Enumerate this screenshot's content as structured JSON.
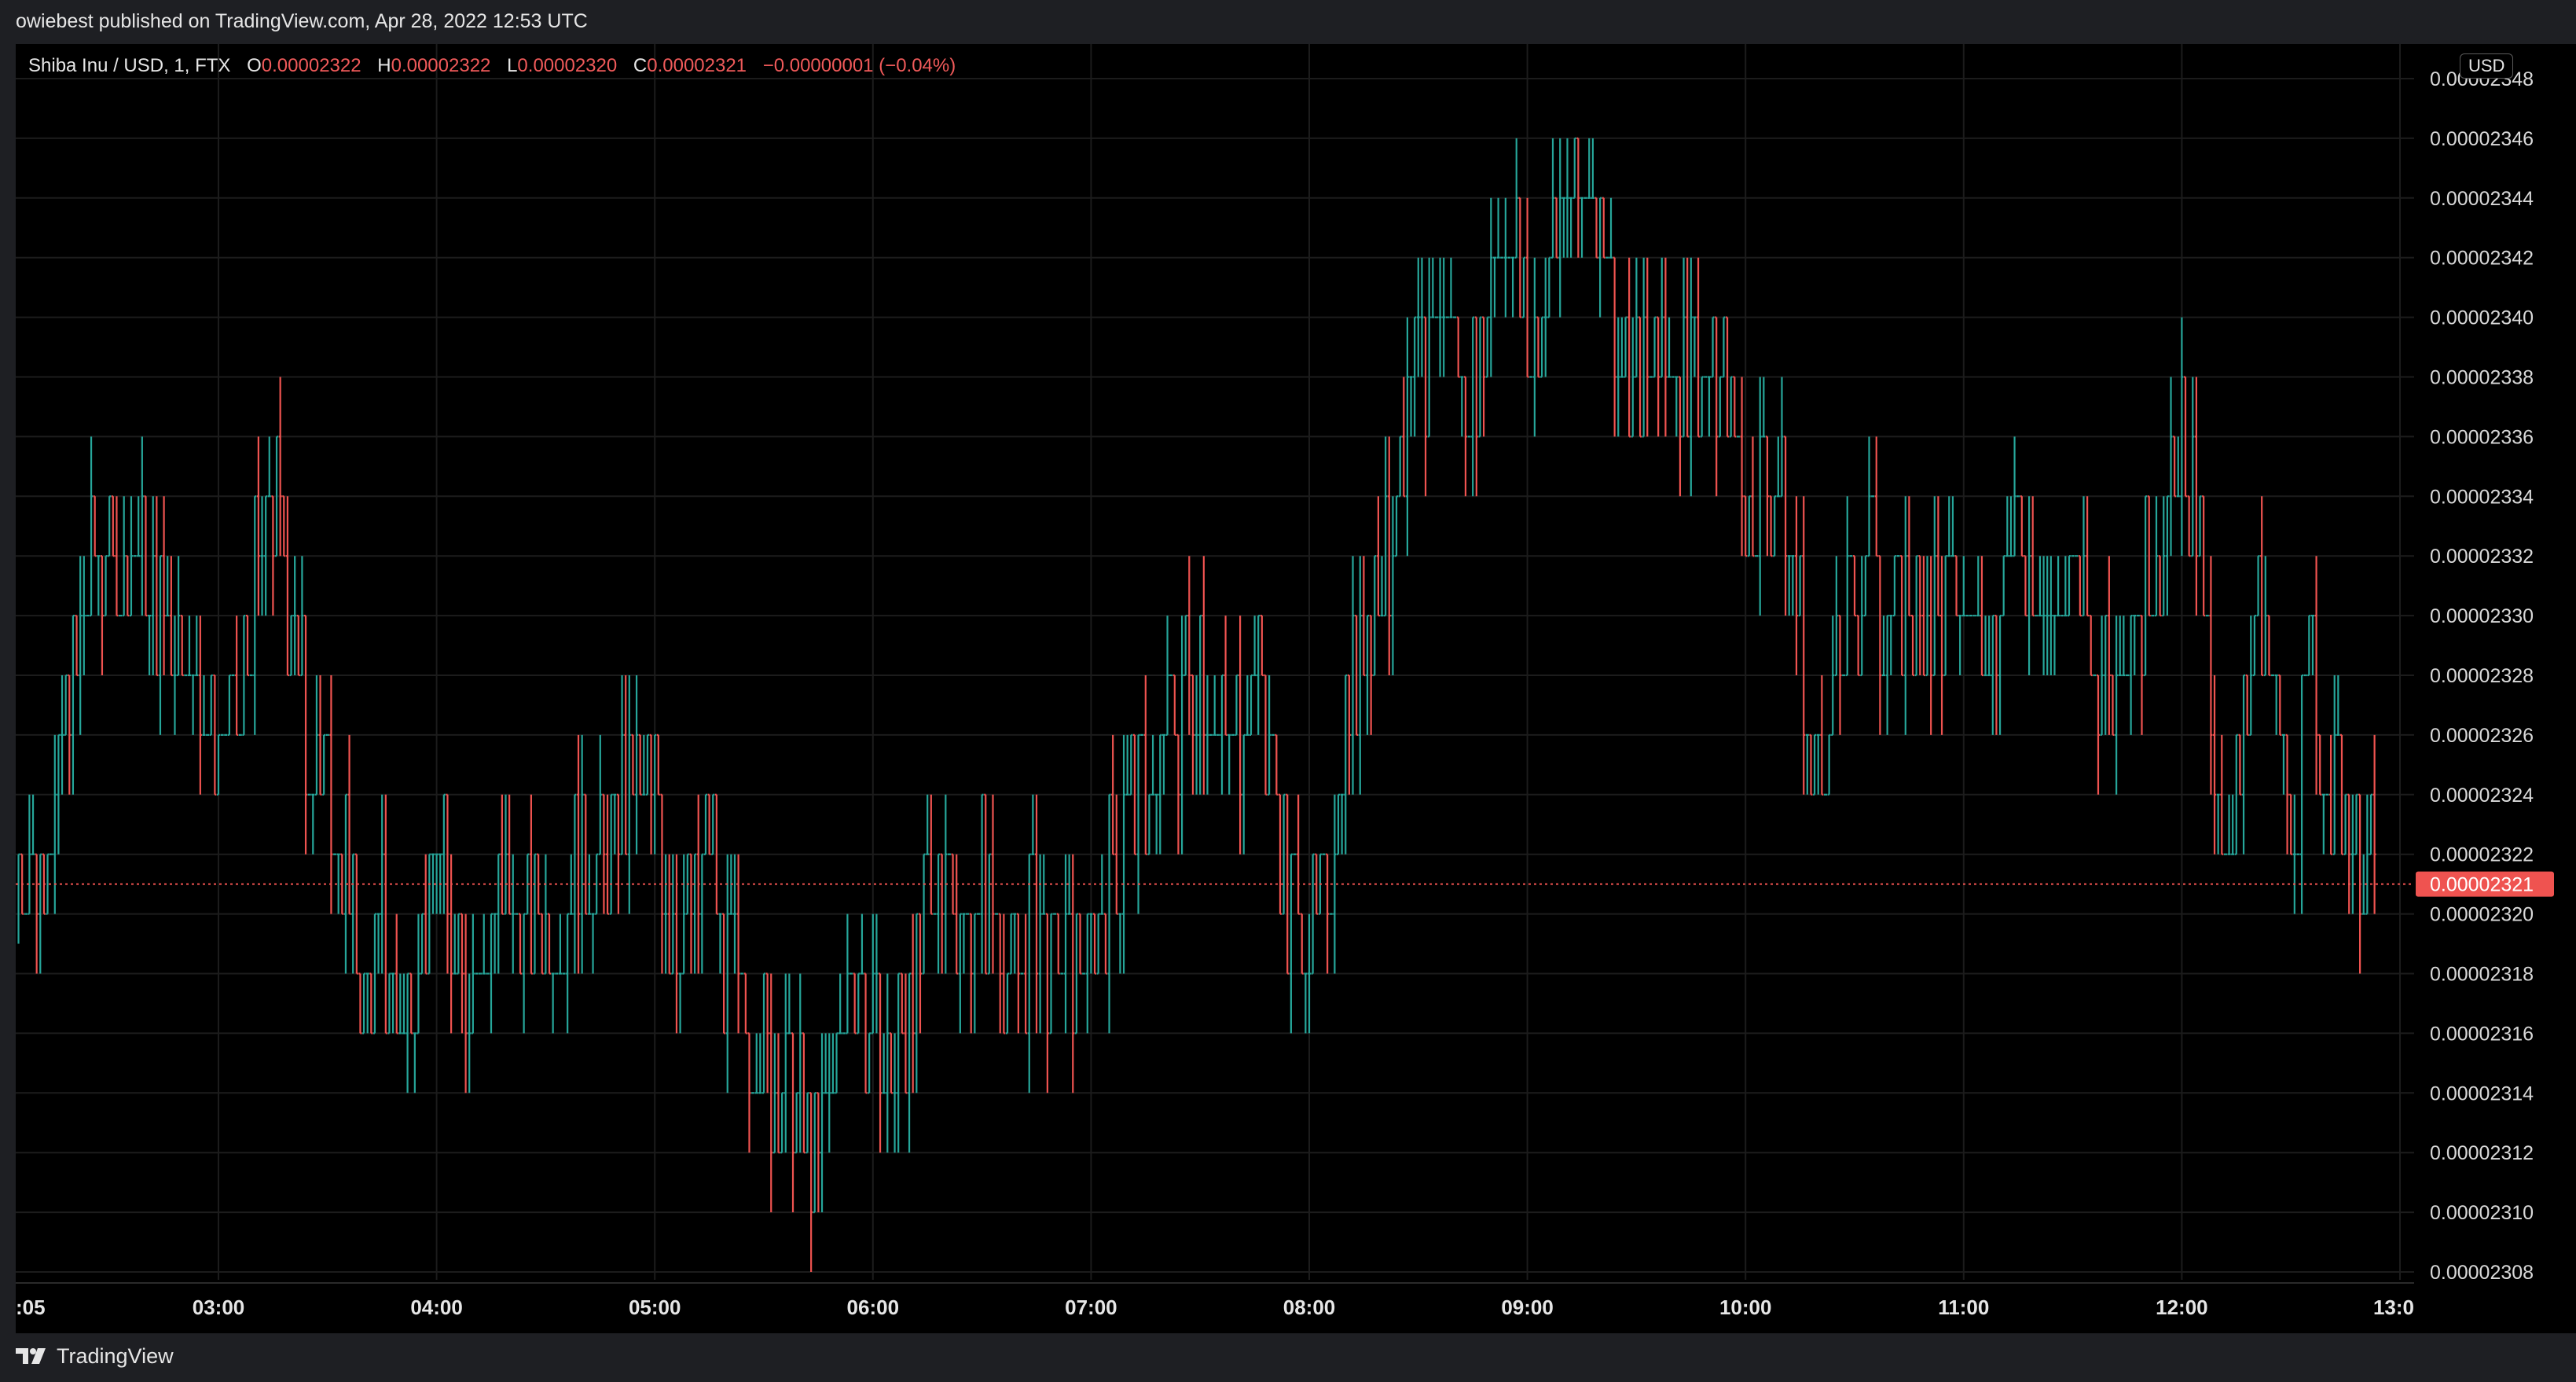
{
  "header": {
    "published": "owiebest published on TradingView.com, Apr 28, 2022 12:53 UTC"
  },
  "legend": {
    "symbol": "Shiba Inu / USD, 1, FTX",
    "open_label": "O",
    "open": "0.00002322",
    "high_label": "H",
    "high": "0.00002322",
    "low_label": "L",
    "low": "0.00002320",
    "close_label": "C",
    "close": "0.00002321",
    "change": "−0.00000001 (−0.04%)"
  },
  "currency": "USD",
  "last_price_label": "0.00002321",
  "footer": {
    "brand": "TradingView"
  },
  "colors": {
    "up": "#26a69a",
    "down": "#ef5350",
    "background": "#000000",
    "grid": "#1c1c1c"
  },
  "chart_data": {
    "type": "line",
    "title": "Shiba Inu / USD, 1, FTX",
    "xlabel": "",
    "ylabel": "",
    "x_tick_labels": [
      ":05",
      "03:00",
      "04:00",
      "05:00",
      "06:00",
      "07:00",
      "08:00",
      "09:00",
      "10:00",
      "11:00",
      "12:00",
      "13:0"
    ],
    "y_tick_labels": [
      "0.00002308",
      "0.00002310",
      "0.00002312",
      "0.00002314",
      "0.00002316",
      "0.00002318",
      "0.00002320",
      "0.00002322",
      "0.00002324",
      "0.00002326",
      "0.00002328",
      "0.00002330",
      "0.00002332",
      "0.00002334",
      "0.00002336",
      "0.00002338",
      "0.00002340",
      "0.00002342",
      "0.00002344",
      "0.00002346",
      "0.00002348"
    ],
    "ylim": [
      2.308e-05,
      2.348e-05
    ],
    "last_price": 2.321e-05,
    "grid": true,
    "series": [
      {
        "values": [
          {
            "t": "02:05",
            "p": 2.321e-05
          },
          {
            "t": "02:10",
            "p": 2.322e-05
          },
          {
            "t": "02:15",
            "p": 2.324e-05
          },
          {
            "t": "02:20",
            "p": 2.328e-05
          },
          {
            "t": "02:25",
            "p": 2.331e-05
          },
          {
            "t": "02:30",
            "p": 2.332e-05
          },
          {
            "t": "02:40",
            "p": 2.331e-05
          },
          {
            "t": "02:50",
            "p": 2.33e-05
          },
          {
            "t": "02:55",
            "p": 2.327e-05
          },
          {
            "t": "03:00",
            "p": 2.325e-05
          },
          {
            "t": "03:07",
            "p": 2.327e-05
          },
          {
            "t": "03:10",
            "p": 2.331e-05
          },
          {
            "t": "03:15",
            "p": 2.334e-05
          },
          {
            "t": "03:20",
            "p": 2.33e-05
          },
          {
            "t": "03:25",
            "p": 2.326e-05
          },
          {
            "t": "03:30",
            "p": 2.324e-05
          },
          {
            "t": "03:35",
            "p": 2.321e-05
          },
          {
            "t": "03:40",
            "p": 2.317e-05
          },
          {
            "t": "03:45",
            "p": 2.319e-05
          },
          {
            "t": "03:50",
            "p": 2.316e-05
          },
          {
            "t": "03:55",
            "p": 2.319e-05
          },
          {
            "t": "04:00",
            "p": 2.322e-05
          },
          {
            "t": "04:05",
            "p": 2.32e-05
          },
          {
            "t": "04:10",
            "p": 2.318e-05
          },
          {
            "t": "04:20",
            "p": 2.32e-05
          },
          {
            "t": "04:30",
            "p": 2.319e-05
          },
          {
            "t": "04:40",
            "p": 2.322e-05
          },
          {
            "t": "05:00",
            "p": 2.324e-05
          },
          {
            "t": "05:05",
            "p": 2.319e-05
          },
          {
            "t": "05:10",
            "p": 2.32e-05
          },
          {
            "t": "05:15",
            "p": 2.322e-05
          },
          {
            "t": "05:20",
            "p": 2.318e-05
          },
          {
            "t": "05:25",
            "p": 2.316e-05
          },
          {
            "t": "05:30",
            "p": 2.315e-05
          },
          {
            "t": "05:40",
            "p": 2.313e-05
          },
          {
            "t": "05:45",
            "p": 2.312e-05
          },
          {
            "t": "05:50",
            "p": 2.316e-05
          },
          {
            "t": "05:55",
            "p": 2.318e-05
          },
          {
            "t": "06:00",
            "p": 2.316e-05
          },
          {
            "t": "06:05",
            "p": 2.314e-05
          },
          {
            "t": "06:10",
            "p": 2.317e-05
          },
          {
            "t": "06:15",
            "p": 2.32e-05
          },
          {
            "t": "06:20",
            "p": 2.322e-05
          },
          {
            "t": "06:25",
            "p": 2.32e-05
          },
          {
            "t": "06:30",
            "p": 2.321e-05
          },
          {
            "t": "06:35",
            "p": 2.319e-05
          },
          {
            "t": "06:40",
            "p": 2.318e-05
          },
          {
            "t": "06:45",
            "p": 2.32e-05
          },
          {
            "t": "06:50",
            "p": 2.318e-05
          },
          {
            "t": "06:55",
            "p": 2.318e-05
          },
          {
            "t": "07:00",
            "p": 2.319e-05
          },
          {
            "t": "07:05",
            "p": 2.321e-05
          },
          {
            "t": "07:10",
            "p": 2.324e-05
          },
          {
            "t": "07:20",
            "p": 2.325e-05
          },
          {
            "t": "07:25",
            "p": 2.327e-05
          },
          {
            "t": "07:30",
            "p": 2.329e-05
          },
          {
            "t": "07:35",
            "p": 2.326e-05
          },
          {
            "t": "07:40",
            "p": 2.326e-05
          },
          {
            "t": "07:45",
            "p": 2.329e-05
          },
          {
            "t": "07:50",
            "p": 2.324e-05
          },
          {
            "t": "07:55",
            "p": 2.32e-05
          },
          {
            "t": "08:00",
            "p": 2.319e-05
          },
          {
            "t": "08:05",
            "p": 2.321e-05
          },
          {
            "t": "08:10",
            "p": 2.326e-05
          },
          {
            "t": "08:15",
            "p": 2.33e-05
          },
          {
            "t": "08:20",
            "p": 2.332e-05
          },
          {
            "t": "08:25",
            "p": 2.334e-05
          },
          {
            "t": "08:30",
            "p": 2.338e-05
          },
          {
            "t": "08:35",
            "p": 2.34e-05
          },
          {
            "t": "08:40",
            "p": 2.339e-05
          },
          {
            "t": "08:45",
            "p": 2.337e-05
          },
          {
            "t": "08:50",
            "p": 2.341e-05
          },
          {
            "t": "08:55",
            "p": 2.344e-05
          },
          {
            "t": "09:00",
            "p": 2.338e-05
          },
          {
            "t": "09:05",
            "p": 2.341e-05
          },
          {
            "t": "09:10",
            "p": 2.344e-05
          },
          {
            "t": "09:15",
            "p": 2.343e-05
          },
          {
            "t": "09:20",
            "p": 2.343e-05
          },
          {
            "t": "09:25",
            "p": 2.34e-05
          },
          {
            "t": "09:30",
            "p": 2.338e-05
          },
          {
            "t": "09:35",
            "p": 2.339e-05
          },
          {
            "t": "09:40",
            "p": 2.337e-05
          },
          {
            "t": "09:45",
            "p": 2.339e-05
          },
          {
            "t": "09:50",
            "p": 2.337e-05
          },
          {
            "t": "09:55",
            "p": 2.338e-05
          },
          {
            "t": "10:00",
            "p": 2.333e-05
          },
          {
            "t": "10:05",
            "p": 2.335e-05
          },
          {
            "t": "10:10",
            "p": 2.334e-05
          },
          {
            "t": "10:15",
            "p": 2.33e-05
          },
          {
            "t": "10:18",
            "p": 2.323e-05
          },
          {
            "t": "10:20",
            "p": 2.325e-05
          },
          {
            "t": "10:25",
            "p": 2.328e-05
          },
          {
            "t": "10:30",
            "p": 2.33e-05
          },
          {
            "t": "10:35",
            "p": 2.332e-05
          },
          {
            "t": "10:40",
            "p": 2.329e-05
          },
          {
            "t": "10:45",
            "p": 2.33e-05
          },
          {
            "t": "10:55",
            "p": 2.329e-05
          },
          {
            "t": "11:05",
            "p": 2.33e-05
          },
          {
            "t": "11:10",
            "p": 2.331e-05
          },
          {
            "t": "11:15",
            "p": 2.333e-05
          },
          {
            "t": "11:20",
            "p": 2.332e-05
          },
          {
            "t": "11:25",
            "p": 2.329e-05
          },
          {
            "t": "11:30",
            "p": 2.33e-05
          },
          {
            "t": "11:35",
            "p": 2.329e-05
          },
          {
            "t": "11:40",
            "p": 2.328e-05
          },
          {
            "t": "11:45",
            "p": 2.33e-05
          },
          {
            "t": "11:50",
            "p": 2.331e-05
          },
          {
            "t": "11:55",
            "p": 2.333e-05
          },
          {
            "t": "12:00",
            "p": 2.336e-05
          },
          {
            "t": "12:05",
            "p": 2.332e-05
          },
          {
            "t": "12:08",
            "p": 2.325e-05
          },
          {
            "t": "12:12",
            "p": 2.32e-05
          },
          {
            "t": "12:15",
            "p": 2.326e-05
          },
          {
            "t": "12:20",
            "p": 2.33e-05
          },
          {
            "t": "12:25",
            "p": 2.327e-05
          },
          {
            "t": "12:30",
            "p": 2.322e-05
          },
          {
            "t": "12:35",
            "p": 2.328e-05
          },
          {
            "t": "12:40",
            "p": 2.325e-05
          },
          {
            "t": "12:45",
            "p": 2.324e-05
          },
          {
            "t": "12:50",
            "p": 2.321e-05
          }
        ]
      }
    ]
  }
}
